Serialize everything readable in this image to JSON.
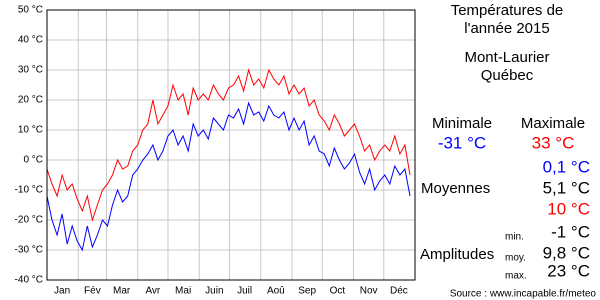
{
  "chart_data": {
    "type": "line",
    "title": [
      "Températures de",
      "l'année 2015"
    ],
    "location": [
      "Mont-Laurier",
      "Québec"
    ],
    "xlim": [
      1,
      366
    ],
    "ylim": [
      -40,
      50
    ],
    "yticks": [
      {
        "value": 50,
        "label": "50 °C"
      },
      {
        "value": 40,
        "label": "40 °C"
      },
      {
        "value": 30,
        "label": "30 °C"
      },
      {
        "value": 20,
        "label": "20 °C"
      },
      {
        "value": 10,
        "label": "10 °C"
      },
      {
        "value": 0,
        "label": "0 °C"
      },
      {
        "value": -10,
        "label": "-10 °C"
      },
      {
        "value": -20,
        "label": "-20 °C"
      },
      {
        "value": -30,
        "label": "-30 °C"
      },
      {
        "value": -40,
        "label": "-40 °C"
      }
    ],
    "xticks": [
      {
        "value": 16,
        "label": "Jan"
      },
      {
        "value": 46,
        "label": "Fév"
      },
      {
        "value": 75,
        "label": "Mar"
      },
      {
        "value": 106,
        "label": "Avr"
      },
      {
        "value": 136,
        "label": "Mai"
      },
      {
        "value": 167,
        "label": "Juin"
      },
      {
        "value": 197,
        "label": "Juil"
      },
      {
        "value": 228,
        "label": "Aoû"
      },
      {
        "value": 259,
        "label": "Sep"
      },
      {
        "value": 289,
        "label": "Oct"
      },
      {
        "value": 320,
        "label": "Nov"
      },
      {
        "value": 350,
        "label": "Déc"
      }
    ],
    "xgrid": [
      32,
      60,
      91,
      121,
      152,
      182,
      213,
      244,
      274,
      305,
      335
    ],
    "grid": true,
    "x": [
      1,
      6,
      11,
      16,
      21,
      26,
      31,
      36,
      41,
      46,
      51,
      56,
      61,
      66,
      71,
      76,
      81,
      86,
      91,
      96,
      101,
      106,
      111,
      116,
      121,
      126,
      131,
      136,
      141,
      146,
      151,
      156,
      161,
      166,
      171,
      176,
      181,
      186,
      191,
      196,
      201,
      206,
      211,
      216,
      221,
      226,
      231,
      236,
      241,
      246,
      251,
      256,
      261,
      266,
      271,
      276,
      281,
      286,
      291,
      296,
      301,
      306,
      311,
      316,
      321,
      326,
      331,
      336,
      341,
      346,
      351,
      356,
      361
    ],
    "series": [
      {
        "name": "Minimale",
        "color": "#0000ff",
        "values": [
          -12,
          -20,
          -25,
          -18,
          -28,
          -22,
          -27,
          -30,
          -22,
          -29,
          -25,
          -20,
          -22,
          -15,
          -10,
          -14,
          -12,
          -5,
          -3,
          0,
          2,
          5,
          0,
          3,
          8,
          10,
          5,
          8,
          3,
          12,
          8,
          10,
          7,
          14,
          12,
          10,
          15,
          14,
          17,
          12,
          19,
          15,
          16,
          13,
          18,
          15,
          14,
          16,
          10,
          14,
          10,
          13,
          5,
          8,
          3,
          2,
          -2,
          4,
          0,
          -3,
          -1,
          2,
          -4,
          -8,
          -3,
          -10,
          -7,
          -5,
          -8,
          -2,
          -5,
          -3,
          -12
        ]
      },
      {
        "name": "Maximale",
        "color": "#ff0000",
        "values": [
          -3,
          -8,
          -12,
          -5,
          -10,
          -8,
          -13,
          -17,
          -12,
          -20,
          -15,
          -10,
          -8,
          -5,
          0,
          -3,
          -2,
          3,
          5,
          10,
          12,
          20,
          12,
          15,
          18,
          25,
          20,
          22,
          15,
          24,
          20,
          22,
          20,
          25,
          22,
          20,
          24,
          25,
          28,
          23,
          30,
          25,
          27,
          24,
          30,
          27,
          25,
          28,
          22,
          25,
          22,
          24,
          18,
          20,
          15,
          13,
          10,
          15,
          12,
          8,
          10,
          12,
          8,
          3,
          5,
          0,
          3,
          5,
          3,
          8,
          2,
          5,
          -5
        ]
      }
    ],
    "summary": {
      "extremes": [
        "-31 °C",
        "33 °C"
      ],
      "means_label": "Moyennes",
      "means": [
        "0,1 °C",
        "5,1 °C",
        "10 °C"
      ],
      "amplitudes_label": "Amplitudes",
      "amplitudes": [
        {
          "label": "min.",
          "value": "-1 °C"
        },
        {
          "label": "moy.",
          "value": "9,8 °C"
        },
        {
          "label": "max.",
          "value": "23 °C"
        }
      ],
      "source": "Source : www.incapable.fr/meteo"
    }
  }
}
